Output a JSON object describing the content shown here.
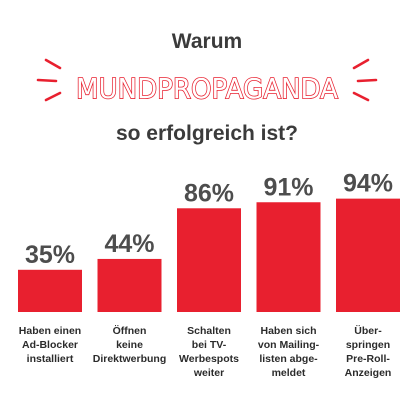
{
  "header": {
    "line1": "Warum",
    "highlight": "MUNDPROPAGANDA",
    "line3": "so erfolgreich ist?"
  },
  "colors": {
    "bar": "#e8202f",
    "accent": "#e8202f",
    "text": "#3b3b3b",
    "value_text": "#4d4d4d"
  },
  "chart_data": {
    "type": "bar",
    "categories": [
      "Haben einen Ad-Blocker installiert",
      "Öffnen keine Direktwerbung",
      "Schalten bei TV-Werbespots weiter",
      "Haben sich von Mailing-listen abge-meldet",
      "Über-springen Pre-Roll-Anzeigen"
    ],
    "category_lines": [
      [
        "Haben einen",
        "Ad-Blocker",
        "installiert"
      ],
      [
        "Öffnen",
        "keine",
        "Direktwerbung"
      ],
      [
        "Schalten",
        "bei TV-",
        "Werbespots",
        "weiter"
      ],
      [
        "Haben sich",
        "von Mailing-",
        "listen abge-",
        "meldet"
      ],
      [
        "Über-",
        "springen",
        "Pre-Roll-",
        "Anzeigen"
      ]
    ],
    "values": [
      35,
      44,
      86,
      91,
      94
    ],
    "value_labels": [
      "35%",
      "44%",
      "86%",
      "91%",
      "94%"
    ],
    "title": "",
    "xlabel": "",
    "ylabel": "",
    "ylim": [
      0,
      100
    ],
    "grid": false
  }
}
